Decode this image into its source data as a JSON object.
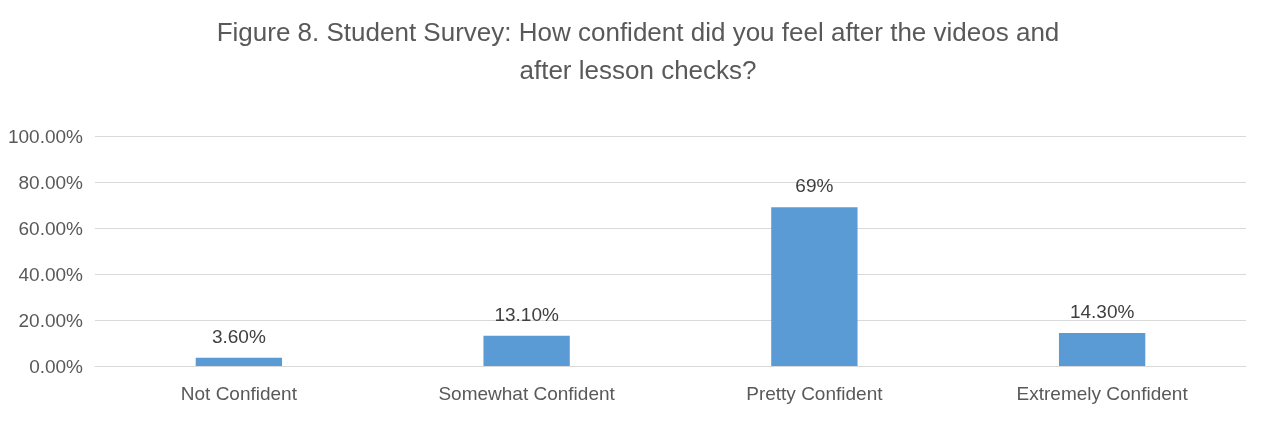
{
  "chart_data": {
    "type": "bar",
    "title": "Figure 8. Student Survey: How confident did you feel after the videos and\nafter lesson checks?",
    "categories": [
      "Not Confident",
      "Somewhat Confident",
      "Pretty Confident",
      "Extremely Confident"
    ],
    "values": [
      3.6,
      13.1,
      69,
      14.3
    ],
    "value_labels": [
      "3.60%",
      "13.10%",
      "69%",
      "14.30%"
    ],
    "color": "#5b9bd5",
    "ylim": [
      0,
      100
    ],
    "yticks": [
      {
        "value": 0,
        "label": "0.00%"
      },
      {
        "value": 20,
        "label": "20.00%"
      },
      {
        "value": 40,
        "label": "40.00%"
      },
      {
        "value": 60,
        "label": "60.00%"
      },
      {
        "value": 80,
        "label": "80.00%"
      },
      {
        "value": 100,
        "label": "100.00%"
      }
    ],
    "grid": "y"
  }
}
